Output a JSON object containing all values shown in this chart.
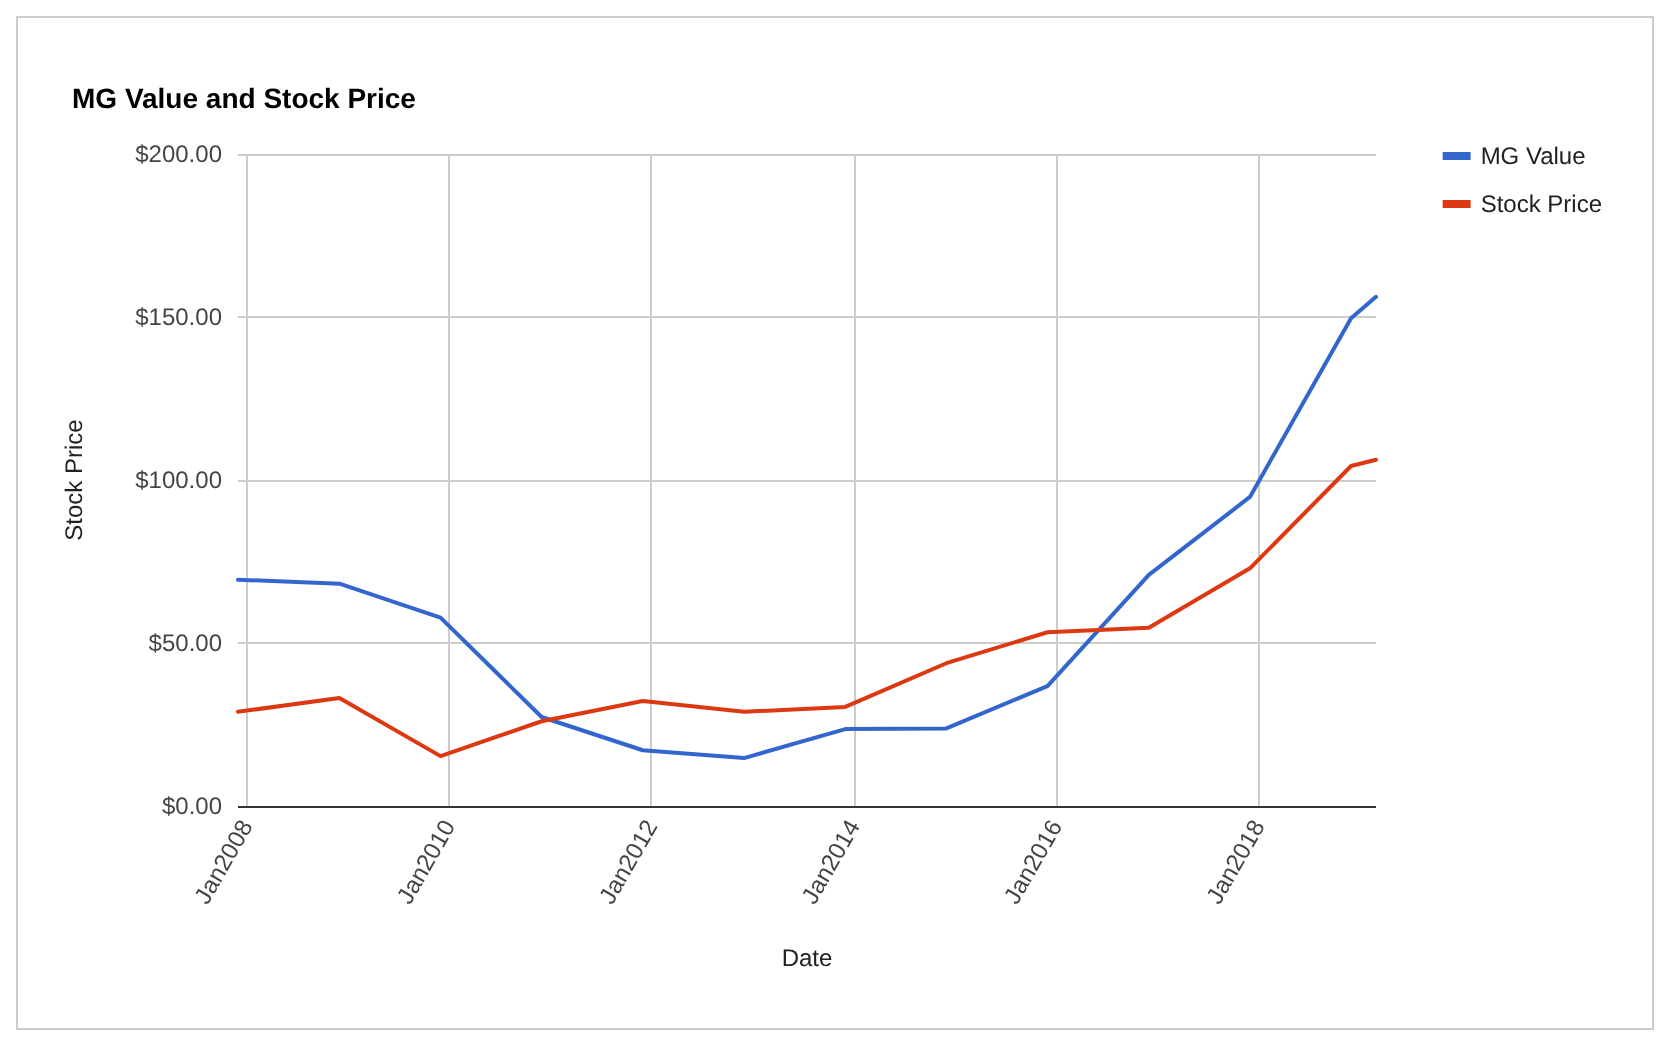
{
  "chart_data": {
    "type": "line",
    "title": "MG Value and Stock Price",
    "xlabel": "Date",
    "ylabel": "Stock Price",
    "x": [
      "2007-12",
      "2008-12",
      "2009-12",
      "2010-12",
      "2011-12",
      "2012-12",
      "2013-12",
      "2014-12",
      "2015-12",
      "2016-12",
      "2017-12",
      "2018-12",
      "2019-03"
    ],
    "series": [
      {
        "name": "MG Value",
        "color": "#3366cc",
        "values": [
          69.4,
          68.2,
          57.8,
          27.3,
          17.1,
          14.7,
          23.6,
          23.8,
          36.8,
          70.9,
          94.8,
          149.6,
          156.2
        ]
      },
      {
        "name": "Stock Price",
        "color": "#dc3912",
        "values": [
          28.9,
          33.1,
          15.3,
          26.0,
          32.2,
          28.9,
          30.4,
          43.8,
          53.3,
          54.7,
          72.9,
          104.3,
          106.2
        ]
      }
    ],
    "xlim": [
      "2007-12",
      "2019-03"
    ],
    "xticks": [
      {
        "value": "2008-01",
        "label": "Jan2008"
      },
      {
        "value": "2010-01",
        "label": "Jan2010"
      },
      {
        "value": "2012-01",
        "label": "Jan2012"
      },
      {
        "value": "2014-01",
        "label": "Jan2014"
      },
      {
        "value": "2016-01",
        "label": "Jan2016"
      },
      {
        "value": "2018-01",
        "label": "Jan2018"
      }
    ],
    "ylim": [
      0,
      200
    ],
    "yticks": [
      {
        "value": 0,
        "label": "$0.00"
      },
      {
        "value": 50,
        "label": "$50.00"
      },
      {
        "value": 100,
        "label": "$100.00"
      },
      {
        "value": 150,
        "label": "$150.00"
      },
      {
        "value": 200,
        "label": "$200.00"
      }
    ],
    "grid": true,
    "legend": "top right",
    "marker": "none",
    "line_style": "solid"
  }
}
